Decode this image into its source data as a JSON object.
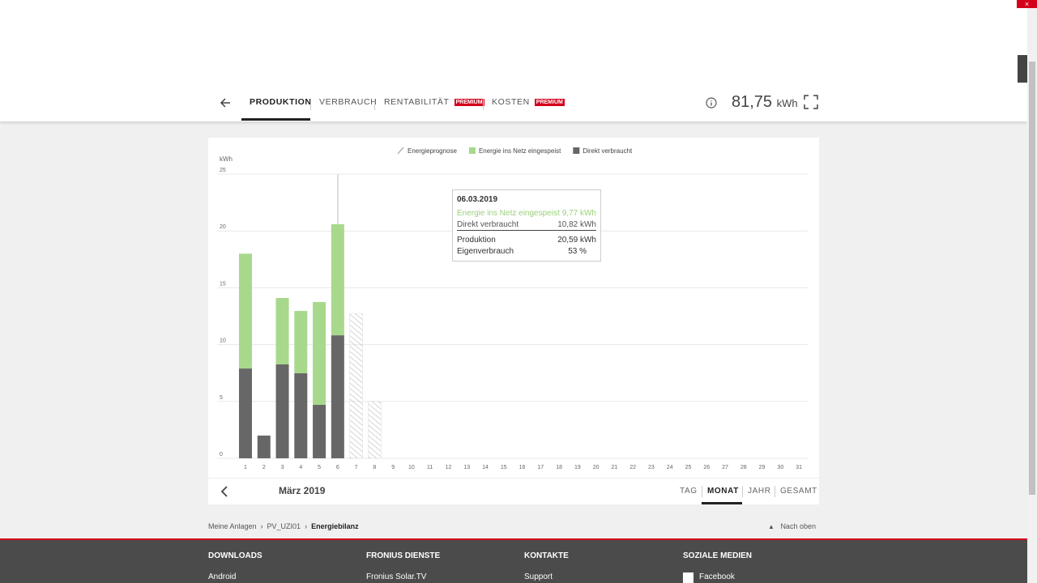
{
  "tabs": [
    {
      "label": "PRODUKTION"
    },
    {
      "label": "VERBRAUCH"
    },
    {
      "label": "RENTABILITÄT",
      "badge": "PREMIUM"
    },
    {
      "label": "KOSTEN",
      "badge": "PREMIUM"
    }
  ],
  "total": {
    "value": "81,75",
    "unit": "kWh"
  },
  "chart_data": {
    "type": "bar",
    "y_label": "kWh",
    "ylim": [
      0,
      25
    ],
    "yticks": [
      0,
      5,
      10,
      15,
      20,
      25
    ],
    "grid": true,
    "categories": [
      "1",
      "2",
      "3",
      "4",
      "5",
      "6",
      "7",
      "8",
      "9",
      "10",
      "11",
      "12",
      "13",
      "14",
      "15",
      "16",
      "17",
      "18",
      "19",
      "20",
      "21",
      "22",
      "23",
      "24",
      "25",
      "26",
      "27",
      "28",
      "29",
      "30",
      "31"
    ],
    "series": [
      {
        "name": "Energieprognose",
        "color": "#9a9a9a",
        "hatch": true,
        "values": [
          null,
          null,
          null,
          null,
          null,
          null,
          12.75,
          5.0,
          null,
          null,
          null,
          null,
          null,
          null,
          null,
          null,
          null,
          null,
          null,
          null,
          null,
          null,
          null,
          null,
          null,
          null,
          null,
          null,
          null,
          null,
          null
        ]
      },
      {
        "name": "Energie ins Netz eingespeist",
        "color": "#a8d88c",
        "values": [
          10.1,
          null,
          5.84,
          5.48,
          9.05,
          9.77,
          null,
          null,
          null,
          null,
          null,
          null,
          null,
          null,
          null,
          null,
          null,
          null,
          null,
          null,
          null,
          null,
          null,
          null,
          null,
          null,
          null,
          null,
          null,
          null,
          null
        ]
      },
      {
        "name": "Direkt verbraucht",
        "color": "#676767",
        "values": [
          7.9,
          2.0,
          8.26,
          7.48,
          4.7,
          10.82,
          null,
          null,
          null,
          null,
          null,
          null,
          null,
          null,
          null,
          null,
          null,
          null,
          null,
          null,
          null,
          null,
          null,
          null,
          null,
          null,
          null,
          null,
          null,
          null,
          null
        ]
      }
    ]
  },
  "tooltip": {
    "date": "06.03.2019",
    "rows": [
      {
        "label": "Energie ins Netz eingespeist",
        "value": "9,77 kWh"
      },
      {
        "label": "Direkt verbraucht",
        "value": "10,82 kWh"
      },
      {
        "label": "Produktion",
        "value": "20,59 kWh"
      },
      {
        "label": "Eigenverbrauch",
        "value": "53 %"
      }
    ]
  },
  "period": {
    "label": "März 2019",
    "options": [
      "TAG",
      "MONAT",
      "JAHR",
      "GESAMT"
    ]
  },
  "breadcrumb": [
    "Meine Anlagen",
    "PV_UZI01",
    "Energiebilanz"
  ],
  "back_to_top": "Nach oben",
  "footer": [
    {
      "heading": "DOWNLOADS",
      "link": "Android"
    },
    {
      "heading": "FRONIUS DIENSTE",
      "link": "Fronius Solar.TV"
    },
    {
      "heading": "KONTAKTE",
      "link": "Support"
    },
    {
      "heading": "SOZIALE MEDIEN",
      "link": "Facebook"
    }
  ]
}
